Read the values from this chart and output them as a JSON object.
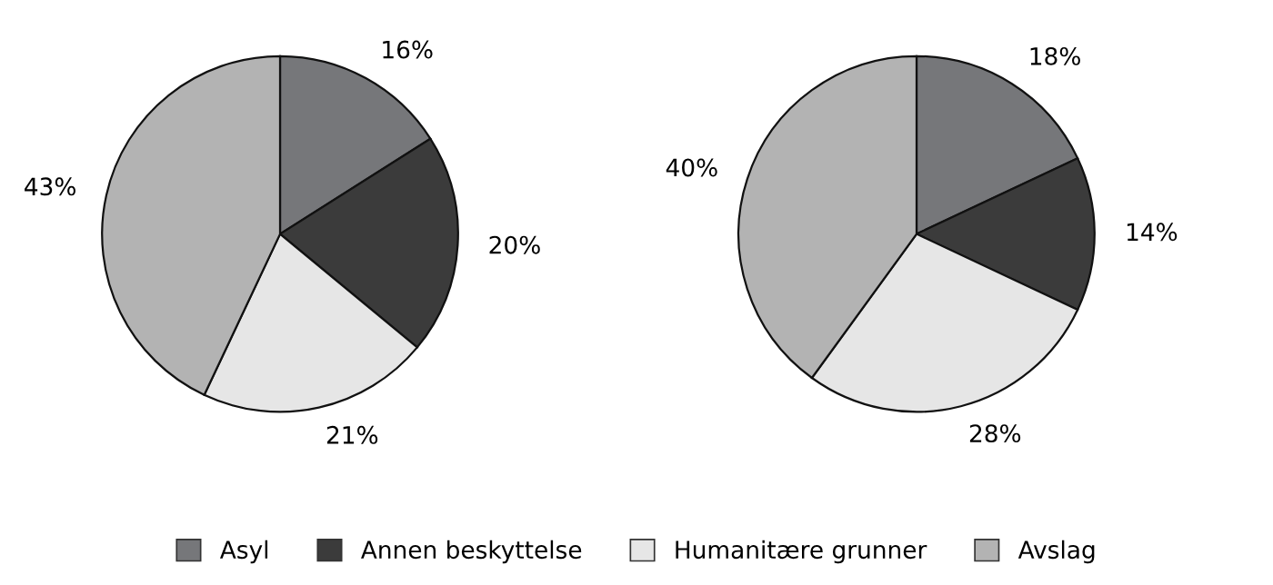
{
  "chart_data": [
    {
      "type": "pie",
      "categories": [
        "Asyl",
        "Annen beskyttelse",
        "Humanitære grunner",
        "Avslag"
      ],
      "values": [
        16,
        20,
        21,
        43
      ],
      "colors": [
        "#76777a",
        "#3b3b3b",
        "#e6e6e6",
        "#b3b3b3"
      ],
      "value_labels": [
        "16%",
        "20%",
        "21%",
        "43%"
      ],
      "legend": "bottom"
    },
    {
      "type": "pie",
      "categories": [
        null,
        null,
        null,
        null
      ],
      "values": [
        18,
        14,
        28,
        40
      ],
      "colors": [
        "#76777a",
        "#3b3b3b",
        "#e6e6e6",
        "#b3b3b3"
      ],
      "value_labels": [
        "18%",
        "14%",
        "28%",
        "40%"
      ]
    }
  ]
}
